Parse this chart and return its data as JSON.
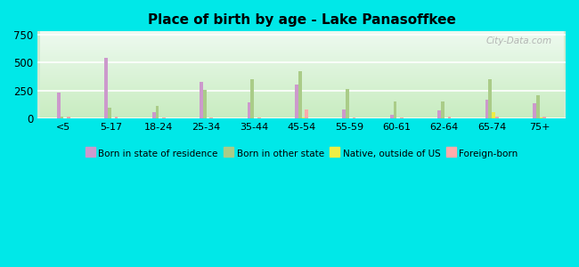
{
  "categories": [
    "<5",
    "5-17",
    "18-24",
    "25-34",
    "35-44",
    "45-54",
    "55-59",
    "60-61",
    "62-64",
    "65-74",
    "75+"
  ],
  "series": {
    "Born in state of residence": [
      230,
      540,
      55,
      325,
      145,
      305,
      80,
      35,
      75,
      170,
      140
    ],
    "Born in other state": [
      20,
      100,
      115,
      260,
      355,
      420,
      265,
      150,
      155,
      350,
      210
    ],
    "Native, outside of US": [
      5,
      5,
      5,
      5,
      5,
      10,
      5,
      5,
      5,
      55,
      10
    ],
    "Foreign-born": [
      15,
      15,
      10,
      10,
      10,
      80,
      10,
      10,
      20,
      15,
      20
    ]
  },
  "colors": {
    "Born in state of residence": "#cc99cc",
    "Born in other state": "#aacc88",
    "Native, outside of US": "#eeee44",
    "Foreign-born": "#ffaaaa"
  },
  "title": "Place of birth by age - Lake Panasoffkee",
  "ylim": [
    0,
    780
  ],
  "yticks": [
    0,
    250,
    500,
    750
  ],
  "outer_background": "#00e8e8",
  "watermark": "City-Data.com",
  "bar_width": 0.07,
  "legend_labels": [
    "Born in state of residence",
    "Born in other state",
    "Native, outside of US",
    "Foreign-born"
  ]
}
